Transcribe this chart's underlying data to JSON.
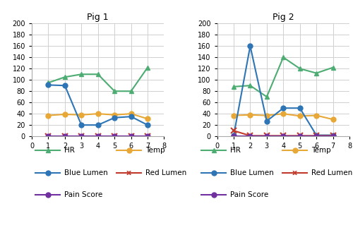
{
  "pig1": {
    "title": "Pig 1",
    "x": [
      1,
      2,
      3,
      4,
      5,
      6,
      7
    ],
    "HR": [
      95,
      105,
      110,
      110,
      80,
      80,
      122
    ],
    "Temp": [
      37,
      39,
      38,
      40,
      38,
      40,
      31
    ],
    "BlueLumen": [
      91,
      90,
      20,
      20,
      33,
      35,
      20
    ],
    "RedLumen": [
      0,
      0,
      0,
      0,
      0,
      0,
      0
    ],
    "PainScore": [
      0,
      0,
      0,
      0,
      0,
      0,
      0
    ]
  },
  "pig2": {
    "title": "Pig 2",
    "x": [
      1,
      2,
      3,
      4,
      5,
      6,
      7
    ],
    "HR": [
      88,
      90,
      70,
      140,
      120,
      112,
      122
    ],
    "Temp": [
      37,
      38,
      37,
      40,
      36,
      37,
      30
    ],
    "BlueLumen": [
      1,
      160,
      27,
      50,
      50,
      2,
      2
    ],
    "RedLumen": [
      10,
      1,
      1,
      1,
      1,
      1,
      1
    ],
    "PainScore": [
      0,
      0,
      0,
      0,
      0,
      0,
      0
    ]
  },
  "colors": {
    "HR": "#4dac72",
    "Temp": "#e8a838",
    "BlueLumen": "#2e75b6",
    "RedLumen": "#c0392b",
    "PainScore": "#7030a0"
  },
  "ylim": [
    0,
    200
  ],
  "yticks": [
    0,
    20,
    40,
    60,
    80,
    100,
    120,
    140,
    160,
    180,
    200
  ],
  "xlim": [
    0,
    8
  ],
  "xticks": [
    0,
    1,
    2,
    3,
    4,
    5,
    6,
    7,
    8
  ]
}
